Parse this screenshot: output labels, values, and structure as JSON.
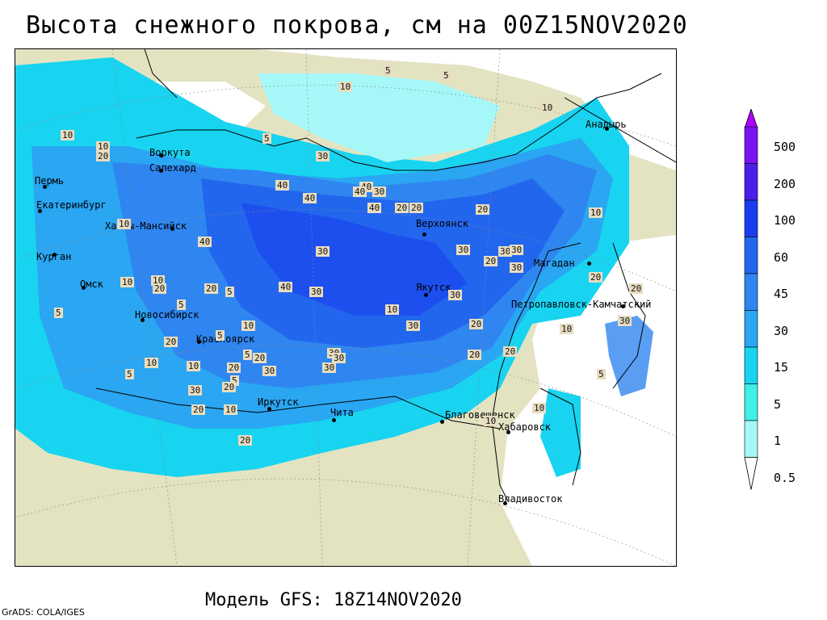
{
  "title": "Высота снежного покрова, см на 00Z15NOV2020",
  "model_label": "Модель GFS: 18Z14NOV2020",
  "credit": "GrADS: COLA/IGES",
  "legend": {
    "ticks": [
      "500",
      "200",
      "100",
      "60",
      "45",
      "30",
      "15",
      "5",
      "1",
      "0.5"
    ],
    "colors": [
      "#b000ff",
      "#7a14f0",
      "#4d1ee8",
      "#1a3cf0",
      "#2266ee",
      "#2f86f0",
      "#2aa6f2",
      "#18d4f0",
      "#3ef0e6",
      "#a6f8f8"
    ]
  },
  "colors": {
    "land": "#e3e3c2",
    "ocean": "#ffffff",
    "snow_light": "#a6f8f8",
    "snow_cyan": "#18d4f0",
    "snow_mid": "#2aa6f2",
    "snow_blue": "#2f86f0",
    "snow_deep": "#2266ee",
    "snow_deeper": "#1a3cf0"
  },
  "cities": [
    {
      "name": "Воркута"
    },
    {
      "name": "Салехард"
    },
    {
      "name": "Пермь"
    },
    {
      "name": "Екатеринбург"
    },
    {
      "name": "Ханты-Мансийск"
    },
    {
      "name": "Курган"
    },
    {
      "name": "Омск"
    },
    {
      "name": "Новосибирск"
    },
    {
      "name": "Красноярск"
    },
    {
      "name": "Иркутск"
    },
    {
      "name": "Чита"
    },
    {
      "name": "Благовещенск"
    },
    {
      "name": "Хабаровск"
    },
    {
      "name": "Владивосток"
    },
    {
      "name": "Якутск"
    },
    {
      "name": "Верхоянск"
    },
    {
      "name": "Магадан"
    },
    {
      "name": "Петропавловск-Камчатский"
    },
    {
      "name": "Анадырь"
    }
  ],
  "contour_labels": [
    "10",
    "5",
    "5",
    "10",
    "30",
    "5",
    "10",
    "20",
    "10",
    "10",
    "40",
    "40",
    "40",
    "40",
    "30",
    "40",
    "20",
    "20",
    "30",
    "30",
    "30",
    "10",
    "20",
    "30",
    "30",
    "20",
    "20",
    "10",
    "5",
    "10",
    "20",
    "5",
    "20",
    "5",
    "10",
    "20",
    "30",
    "40",
    "30",
    "30",
    "30",
    "30",
    "20",
    "20",
    "30",
    "10",
    "5",
    "5",
    "10",
    "20",
    "5",
    "20",
    "10",
    "20",
    "30",
    "20",
    "10",
    "5",
    "40",
    "20",
    "10",
    "5",
    "20",
    "30",
    "10",
    "10",
    "30",
    "20"
  ]
}
